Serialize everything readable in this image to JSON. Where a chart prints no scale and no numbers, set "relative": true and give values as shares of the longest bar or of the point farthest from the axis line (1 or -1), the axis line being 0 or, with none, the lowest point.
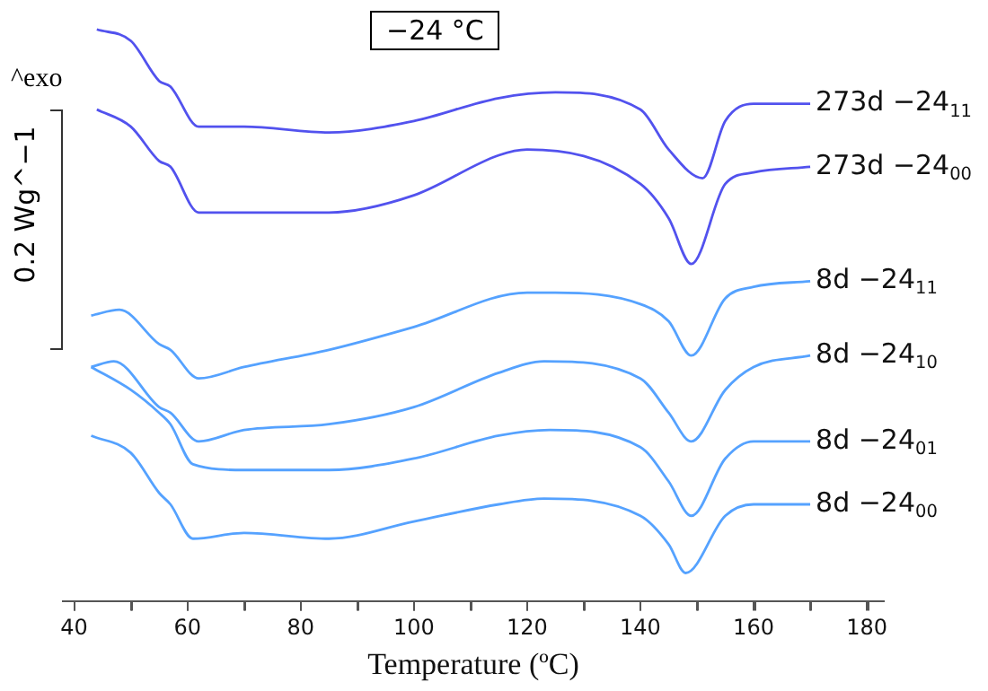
{
  "chart_data": {
    "type": "line",
    "title": "−24 °C",
    "xlabel": "Temperature (ºC)",
    "ylabel": "0.2 Wg^−1",
    "annotations": [
      "^exo"
    ],
    "relative": true,
    "grid": false,
    "legend": false,
    "marker": "none",
    "line_style": "solid",
    "xlim": [
      38,
      183
    ],
    "xticks": [
      40,
      {
        "value": 50,
        "label": null
      },
      60,
      {
        "value": 70,
        "label": null
      },
      80,
      {
        "value": 90,
        "label": null
      },
      100,
      {
        "value": 110,
        "label": null
      },
      120,
      {
        "value": 130,
        "label": null
      },
      140,
      {
        "value": 150,
        "label": null
      },
      160,
      {
        "value": 170,
        "label": null
      },
      180
    ],
    "series": [
      {
        "name": "273d −24$_{11}$",
        "color": "#5252ee",
        "x": [
          44,
          50,
          55,
          57,
          62,
          70,
          85,
          100,
          115,
          125,
          140,
          145,
          151,
          155,
          160,
          170
        ],
        "values": [
          1.0,
          0.98,
          0.91,
          0.9,
          0.83,
          0.83,
          0.82,
          0.84,
          0.88,
          0.89,
          0.86,
          0.79,
          0.74,
          0.84,
          0.87,
          0.87
        ]
      },
      {
        "name": "273d −24$_{00}$",
        "color": "#5252ee",
        "x": [
          44,
          50,
          55,
          57,
          62,
          70,
          85,
          100,
          115,
          120,
          140,
          145,
          149,
          155,
          160,
          170
        ],
        "values": [
          0.86,
          0.83,
          0.77,
          0.76,
          0.68,
          0.68,
          0.68,
          0.71,
          0.78,
          0.79,
          0.73,
          0.67,
          0.59,
          0.73,
          0.75,
          0.76
        ]
      },
      {
        "name": "8d −24$_{11}$",
        "color": "#55a2ff",
        "x": [
          43,
          48,
          55,
          57,
          62,
          70,
          85,
          100,
          120,
          125,
          140,
          145,
          149,
          155,
          160,
          170
        ],
        "values": [
          0.5,
          0.51,
          0.45,
          0.44,
          0.39,
          0.41,
          0.44,
          0.48,
          0.54,
          0.54,
          0.52,
          0.49,
          0.43,
          0.53,
          0.55,
          0.56
        ]
      },
      {
        "name": "8d −24$_{10}$",
        "color": "#55a2ff",
        "x": [
          43,
          47,
          55,
          57,
          62,
          70,
          85,
          100,
          115,
          123,
          140,
          145,
          149,
          155,
          160,
          170
        ],
        "values": [
          0.41,
          0.42,
          0.34,
          0.33,
          0.28,
          0.3,
          0.31,
          0.34,
          0.4,
          0.42,
          0.39,
          0.33,
          0.28,
          0.37,
          0.41,
          0.43
        ]
      },
      {
        "name": "8d −24$_{01}$",
        "color": "#55a2ff",
        "x": [
          43,
          50,
          55,
          57,
          61,
          70,
          85,
          100,
          115,
          124,
          140,
          145,
          149,
          155,
          160,
          170
        ],
        "values": [
          0.41,
          0.37,
          0.33,
          0.31,
          0.24,
          0.23,
          0.23,
          0.25,
          0.29,
          0.3,
          0.27,
          0.21,
          0.15,
          0.25,
          0.28,
          0.28
        ]
      },
      {
        "name": "8d −24$_{00}$",
        "color": "#55a2ff",
        "x": [
          43,
          50,
          55,
          57,
          61,
          70,
          85,
          100,
          115,
          123,
          140,
          145,
          148,
          155,
          160,
          170
        ],
        "values": [
          0.29,
          0.26,
          0.19,
          0.17,
          0.11,
          0.12,
          0.11,
          0.14,
          0.17,
          0.18,
          0.15,
          0.1,
          0.05,
          0.15,
          0.17,
          0.17
        ]
      }
    ]
  }
}
